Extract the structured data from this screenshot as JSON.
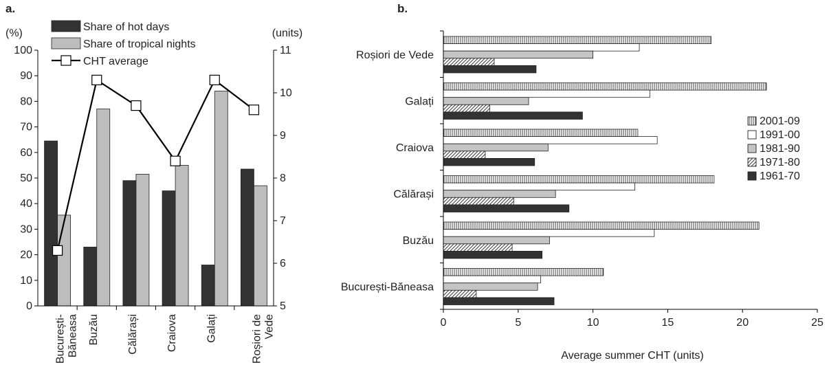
{
  "chart_data": [
    {
      "panel": "a.",
      "type": "bar",
      "categories": [
        [
          "București-",
          "Băneasa"
        ],
        [
          "Buzău"
        ],
        [
          "Călărași"
        ],
        [
          "Craiova"
        ],
        [
          "Galați"
        ],
        [
          "Roșiori de",
          "Vede"
        ]
      ],
      "series": [
        {
          "name": "Share of hot days",
          "kind": "bar",
          "axis": "left",
          "color": "#333333",
          "values": [
            64.5,
            23,
            49,
            45,
            16,
            53.5
          ]
        },
        {
          "name": "Share of tropical nights",
          "kind": "bar",
          "axis": "left",
          "color": "#bdbdbd",
          "values": [
            35.5,
            77,
            51.5,
            55,
            84,
            47
          ]
        },
        {
          "name": "CHT average",
          "kind": "line",
          "axis": "right",
          "color": "#000000",
          "values": [
            6.3,
            10.3,
            9.7,
            8.4,
            10.3,
            9.6
          ]
        }
      ],
      "ylabel": "(%)",
      "ylim": [
        0,
        100
      ],
      "yticks": [
        "0",
        "10",
        "20",
        "30",
        "40",
        "50",
        "60",
        "70",
        "80",
        "90",
        "100"
      ],
      "y2label": "(units)",
      "y2lim": [
        5,
        11
      ],
      "y2ticks": [
        "5",
        "6",
        "7",
        "8",
        "9",
        "10",
        "11"
      ],
      "legend_position": "top-left"
    },
    {
      "panel": "b.",
      "type": "bar",
      "orientation": "horizontal",
      "categories": [
        "Roșiori de Vede",
        "Galați",
        "Craiova",
        "Călărași",
        "Buzău",
        "București-Băneasa"
      ],
      "series": [
        {
          "name": "2001-09",
          "pattern": "vertical-hatch",
          "values": [
            17.9,
            21.6,
            13,
            18.1,
            21.1,
            10.7
          ]
        },
        {
          "name": "1991-00",
          "pattern": "white",
          "values": [
            13.1,
            13.8,
            14.3,
            12.8,
            14.1,
            6.5
          ]
        },
        {
          "name": "1981-90",
          "pattern": "light-gray",
          "values": [
            10,
            5.7,
            7,
            7.5,
            7.1,
            6.3
          ]
        },
        {
          "name": "1971-80",
          "pattern": "diagonal-hatch",
          "values": [
            3.4,
            3.1,
            2.8,
            4.7,
            4.6,
            2.2
          ]
        },
        {
          "name": "1961-70",
          "pattern": "dark",
          "values": [
            6.2,
            9.3,
            6.1,
            8.4,
            6.6,
            7.4
          ]
        }
      ],
      "legend_order": [
        "2001-09",
        "1991-00",
        "1981-90",
        "1971-80",
        "1961-70"
      ],
      "xlabel": "Average summer CHT (units)",
      "xlim": [
        0,
        25
      ],
      "xticks": [
        "0",
        "5",
        "10",
        "15",
        "20",
        "25"
      ],
      "legend_position": "right"
    }
  ]
}
